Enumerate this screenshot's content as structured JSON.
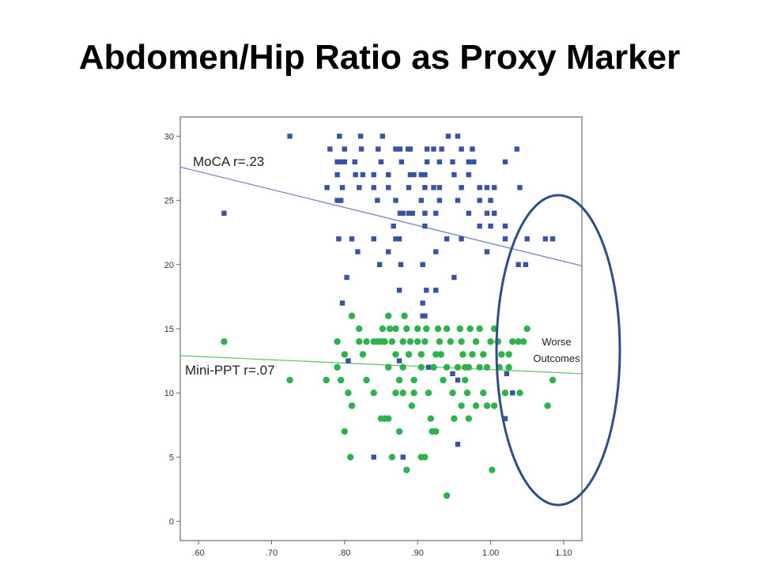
{
  "slide": {
    "title": "Abdomen/Hip Ratio as Proxy Marker"
  },
  "colors": {
    "moca": "#3953a4",
    "ppt": "#2eb24b",
    "ellipse": "#2c4f86",
    "frame": "#888888"
  },
  "chart_data": {
    "type": "scatter",
    "title": "",
    "xlabel": "",
    "ylabel": "",
    "xlim": [
      0.575,
      1.125
    ],
    "ylim": [
      -1.5,
      31.5
    ],
    "x_ticks": [
      ".60",
      ".70",
      ".80",
      ".90",
      "1.00",
      "1.10"
    ],
    "y_ticks": [
      "0",
      "5",
      "10",
      "15",
      "20",
      "25",
      "30"
    ],
    "grid": false,
    "series": [
      {
        "key": "moca",
        "marker": "square",
        "label": "MoCA r=.23",
        "fit": [
          [
            0.575,
            27.6
          ],
          [
            1.125,
            19.9
          ]
        ],
        "points": [
          [
            0.725,
            30
          ],
          [
            0.793,
            30
          ],
          [
            0.822,
            30
          ],
          [
            0.852,
            30
          ],
          [
            0.942,
            30
          ],
          [
            0.955,
            30
          ],
          [
            0.78,
            29
          ],
          [
            0.8,
            29
          ],
          [
            0.823,
            29
          ],
          [
            0.846,
            29
          ],
          [
            0.87,
            29
          ],
          [
            0.876,
            29
          ],
          [
            0.887,
            29
          ],
          [
            0.89,
            29
          ],
          [
            0.913,
            29
          ],
          [
            0.922,
            29
          ],
          [
            0.933,
            29
          ],
          [
            0.96,
            29
          ],
          [
            0.975,
            29
          ],
          [
            1.036,
            29
          ],
          [
            0.79,
            28
          ],
          [
            0.795,
            28
          ],
          [
            0.8,
            28
          ],
          [
            0.814,
            28
          ],
          [
            0.85,
            28
          ],
          [
            0.878,
            28
          ],
          [
            0.913,
            28
          ],
          [
            0.93,
            28
          ],
          [
            0.948,
            28
          ],
          [
            0.97,
            28
          ],
          [
            0.977,
            28
          ],
          [
            1.02,
            28
          ],
          [
            0.79,
            27
          ],
          [
            0.815,
            27
          ],
          [
            0.825,
            27
          ],
          [
            0.84,
            27
          ],
          [
            0.86,
            27
          ],
          [
            0.89,
            27
          ],
          [
            0.895,
            27
          ],
          [
            0.905,
            27
          ],
          [
            0.91,
            27
          ],
          [
            0.95,
            27
          ],
          [
            0.97,
            27
          ],
          [
            0.776,
            26
          ],
          [
            0.797,
            26
          ],
          [
            0.82,
            26
          ],
          [
            0.84,
            26
          ],
          [
            0.86,
            26
          ],
          [
            0.888,
            26
          ],
          [
            0.91,
            26
          ],
          [
            0.922,
            26
          ],
          [
            0.93,
            26
          ],
          [
            0.96,
            26
          ],
          [
            0.985,
            26
          ],
          [
            0.995,
            26
          ],
          [
            1.005,
            26
          ],
          [
            1.04,
            26
          ],
          [
            0.79,
            25
          ],
          [
            0.795,
            25
          ],
          [
            0.845,
            25
          ],
          [
            0.87,
            25
          ],
          [
            0.905,
            25
          ],
          [
            0.93,
            25
          ],
          [
            0.955,
            25
          ],
          [
            0.985,
            25
          ],
          [
            1.0,
            25
          ],
          [
            0.635,
            24
          ],
          [
            0.876,
            24
          ],
          [
            0.88,
            24
          ],
          [
            0.888,
            24
          ],
          [
            0.893,
            24
          ],
          [
            0.91,
            24
          ],
          [
            0.925,
            24
          ],
          [
            0.97,
            24
          ],
          [
            0.995,
            24
          ],
          [
            1.005,
            24
          ],
          [
            0.867,
            23
          ],
          [
            0.91,
            23
          ],
          [
            0.985,
            23
          ],
          [
            1.0,
            23
          ],
          [
            1.02,
            23
          ],
          [
            0.792,
            22
          ],
          [
            0.81,
            22
          ],
          [
            0.84,
            22
          ],
          [
            0.87,
            22
          ],
          [
            0.875,
            22
          ],
          [
            0.94,
            22
          ],
          [
            0.96,
            22
          ],
          [
            1.02,
            22
          ],
          [
            1.05,
            22
          ],
          [
            1.075,
            22
          ],
          [
            1.085,
            22
          ],
          [
            0.818,
            21
          ],
          [
            0.86,
            21
          ],
          [
            0.925,
            21
          ],
          [
            0.995,
            21
          ],
          [
            0.877,
            20
          ],
          [
            0.907,
            20
          ],
          [
            1.038,
            20
          ],
          [
            1.048,
            20
          ],
          [
            0.848,
            20
          ],
          [
            0.803,
            19
          ],
          [
            0.95,
            19
          ],
          [
            0.875,
            18
          ],
          [
            0.912,
            18
          ],
          [
            0.925,
            18
          ],
          [
            0.907,
            17
          ],
          [
            0.797,
            17
          ],
          [
            0.907,
            16
          ],
          [
            0.91,
            16
          ],
          [
            0.805,
            12.5
          ],
          [
            0.875,
            12.5
          ],
          [
            0.915,
            12
          ],
          [
            0.948,
            11.5
          ],
          [
            1.022,
            11.5
          ],
          [
            0.955,
            11
          ],
          [
            1.03,
            10
          ],
          [
            1.02,
            8
          ],
          [
            0.955,
            6
          ],
          [
            0.84,
            5
          ],
          [
            0.88,
            5
          ]
        ]
      },
      {
        "key": "ppt",
        "marker": "circle",
        "label": "Mini-PPT r=.07",
        "fit": [
          [
            0.575,
            12.9
          ],
          [
            1.125,
            11.5
          ]
        ],
        "points": [
          [
            0.635,
            14
          ],
          [
            0.725,
            11
          ],
          [
            0.775,
            11
          ],
          [
            0.79,
            12
          ],
          [
            0.8,
            13
          ],
          [
            0.795,
            11
          ],
          [
            0.805,
            10
          ],
          [
            0.81,
            9
          ],
          [
            0.808,
            5
          ],
          [
            0.8,
            7
          ],
          [
            0.81,
            16
          ],
          [
            0.82,
            15
          ],
          [
            0.82,
            14
          ],
          [
            0.825,
            13
          ],
          [
            0.83,
            14
          ],
          [
            0.84,
            14
          ],
          [
            0.845,
            14
          ],
          [
            0.85,
            14
          ],
          [
            0.855,
            14
          ],
          [
            0.852,
            15
          ],
          [
            0.86,
            16
          ],
          [
            0.84,
            10
          ],
          [
            0.85,
            8
          ],
          [
            0.855,
            8
          ],
          [
            0.86,
            8
          ],
          [
            0.862,
            15
          ],
          [
            0.865,
            14
          ],
          [
            0.87,
            15
          ],
          [
            0.87,
            10
          ],
          [
            0.875,
            11
          ],
          [
            0.88,
            12
          ],
          [
            0.88,
            14
          ],
          [
            0.882,
            16
          ],
          [
            0.885,
            15
          ],
          [
            0.888,
            13
          ],
          [
            0.89,
            14
          ],
          [
            0.892,
            9
          ],
          [
            0.895,
            11
          ],
          [
            0.895,
            10
          ],
          [
            0.885,
            4
          ],
          [
            0.9,
            15
          ],
          [
            0.9,
            14
          ],
          [
            0.905,
            12
          ],
          [
            0.905,
            13
          ],
          [
            0.91,
            14
          ],
          [
            0.912,
            15
          ],
          [
            0.915,
            10
          ],
          [
            0.918,
            8
          ],
          [
            0.92,
            7
          ],
          [
            0.922,
            12
          ],
          [
            0.925,
            13
          ],
          [
            0.928,
            15
          ],
          [
            0.93,
            14
          ],
          [
            0.932,
            13
          ],
          [
            0.935,
            11
          ],
          [
            0.94,
            12
          ],
          [
            0.94,
            15
          ],
          [
            0.945,
            14
          ],
          [
            0.948,
            10
          ],
          [
            0.95,
            8
          ],
          [
            0.955,
            12
          ],
          [
            0.958,
            15
          ],
          [
            0.96,
            14
          ],
          [
            0.962,
            13
          ],
          [
            0.965,
            12
          ],
          [
            0.968,
            10
          ],
          [
            0.97,
            12
          ],
          [
            0.972,
            15
          ],
          [
            0.975,
            13
          ],
          [
            0.98,
            14
          ],
          [
            0.985,
            12
          ],
          [
            0.985,
            15
          ],
          [
            0.99,
            13
          ],
          [
            0.99,
            10
          ],
          [
            0.995,
            12
          ],
          [
            1.0,
            14
          ],
          [
            1.005,
            15
          ],
          [
            1.01,
            14
          ],
          [
            1.012,
            12
          ],
          [
            1.015,
            13
          ],
          [
            1.02,
            10
          ],
          [
            1.025,
            13
          ],
          [
            1.025,
            12
          ],
          [
            1.03,
            14
          ],
          [
            1.038,
            14
          ],
          [
            1.04,
            10
          ],
          [
            1.045,
            14
          ],
          [
            1.05,
            15
          ],
          [
            1.085,
            11
          ],
          [
            1.078,
            9
          ],
          [
            0.94,
            2
          ],
          [
            1.002,
            4
          ],
          [
            0.905,
            5
          ],
          [
            0.91,
            5
          ],
          [
            0.865,
            5
          ],
          [
            0.875,
            7
          ],
          [
            0.925,
            7
          ],
          [
            0.96,
            9
          ],
          [
            0.97,
            8
          ],
          [
            0.98,
            9
          ],
          [
            0.995,
            9
          ],
          [
            1.005,
            9
          ],
          [
            0.83,
            11
          ],
          [
            0.86,
            12
          ],
          [
            0.87,
            13
          ],
          [
            0.88,
            10
          ],
          [
            0.965,
            11
          ],
          [
            0.79,
            14
          ]
        ]
      }
    ],
    "annotations": [
      "Worse",
      "Outcomes"
    ]
  }
}
